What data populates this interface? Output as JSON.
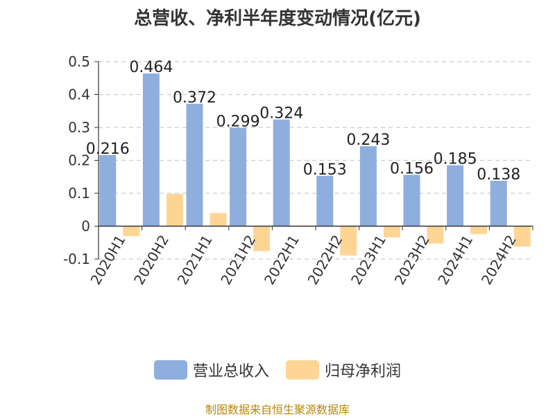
{
  "chart_data": {
    "type": "bar",
    "title": "总营收、净利半年度变动情况(亿元)",
    "categories": [
      "2020H1",
      "2020H2",
      "2021H1",
      "2021H2",
      "2022H1",
      "2022H2",
      "2023H1",
      "2023H2",
      "2024H1",
      "2024H2"
    ],
    "series": [
      {
        "name": "营业总收入",
        "color": "#8eaedd",
        "values": [
          0.216,
          0.464,
          0.372,
          0.299,
          0.324,
          0.153,
          0.243,
          0.156,
          0.185,
          0.138
        ],
        "labels": [
          "0.216",
          "0.464",
          "0.372",
          "0.299",
          "0.324",
          "0.153",
          "0.243",
          "0.156",
          "0.185",
          "0.138"
        ]
      },
      {
        "name": "归母净利润",
        "color": "#fed595",
        "values": [
          -0.03,
          0.098,
          0.04,
          -0.076,
          0.002,
          -0.089,
          -0.034,
          -0.053,
          -0.024,
          -0.062
        ]
      }
    ],
    "ylim": [
      -0.1,
      0.5
    ],
    "yticks": [
      "0.5",
      "0.4",
      "0.3",
      "0.2",
      "0.1",
      "0",
      "-0.1"
    ],
    "grid": true,
    "legend_position": "bottom"
  },
  "source_note": "制图数据来自恒生聚源数据库"
}
